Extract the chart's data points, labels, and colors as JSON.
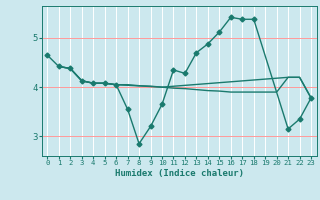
{
  "title": "",
  "xlabel": "Humidex (Indice chaleur)",
  "bg_color": "#cce8ee",
  "line_color": "#1a7a6e",
  "grid_color": "#ffffff",
  "red_grid_color": "#ffaaaa",
  "xlim": [
    -0.5,
    23.5
  ],
  "ylim": [
    2.6,
    5.65
  ],
  "yticks": [
    3,
    4,
    5
  ],
  "xticks": [
    0,
    1,
    2,
    3,
    4,
    5,
    6,
    7,
    8,
    9,
    10,
    11,
    12,
    13,
    14,
    15,
    16,
    17,
    18,
    19,
    20,
    21,
    22,
    23
  ],
  "line1_x": [
    0,
    1,
    2,
    3,
    4,
    5,
    6,
    7,
    8,
    9,
    10,
    11,
    12,
    13,
    14,
    15,
    16,
    17,
    18,
    19,
    20,
    21,
    22,
    23
  ],
  "line1_y": [
    4.65,
    4.42,
    4.38,
    4.13,
    4.08,
    4.08,
    4.05,
    4.05,
    4.03,
    4.02,
    4.0,
    3.98,
    3.97,
    3.95,
    3.93,
    3.92,
    3.9,
    3.9,
    3.9,
    3.9,
    3.9,
    4.2,
    4.2,
    3.78
  ],
  "line2_x": [
    1,
    2,
    3,
    4,
    5,
    6,
    7,
    8,
    9,
    10,
    11,
    12,
    13,
    14,
    15,
    16,
    17,
    18,
    21,
    22,
    23
  ],
  "line2_y": [
    4.42,
    4.38,
    4.13,
    4.08,
    4.08,
    4.05,
    3.55,
    2.85,
    3.2,
    3.65,
    4.35,
    4.28,
    4.7,
    4.88,
    5.12,
    5.42,
    5.38,
    5.38,
    3.15,
    3.35,
    3.78
  ],
  "line3_x": [
    1,
    2,
    3,
    4,
    5,
    6,
    10,
    21,
    22,
    23
  ],
  "line3_y": [
    4.42,
    4.38,
    4.13,
    4.08,
    4.08,
    4.05,
    4.0,
    4.2,
    4.2,
    3.78
  ],
  "marker": "D",
  "markersize": 2.5,
  "linewidth": 1.0
}
